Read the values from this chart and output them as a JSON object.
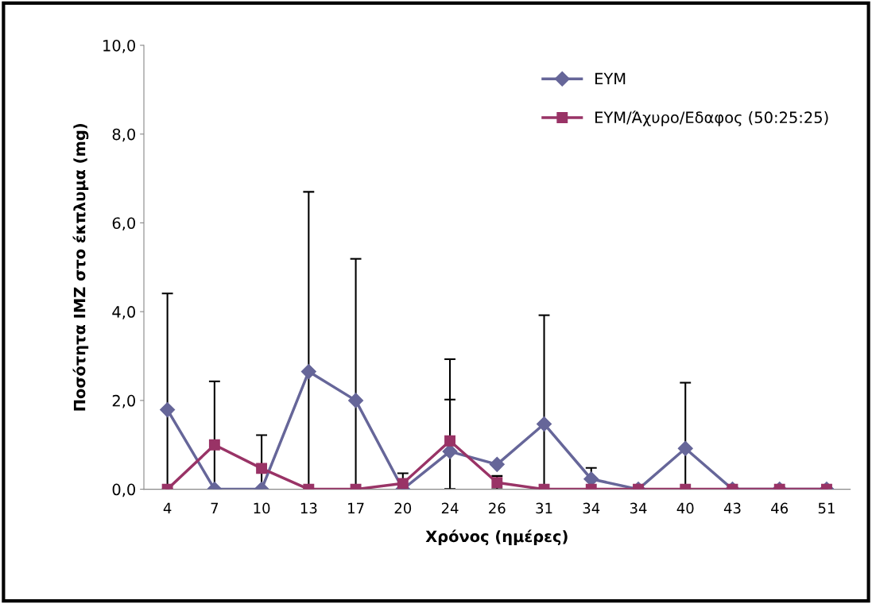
{
  "chart_data": {
    "type": "line",
    "xlabel": "Χρόνος (ημέρες)",
    "ylabel": "Ποσότητα IMZ στο έκπλυμα (mg)",
    "categories": [
      "4",
      "7",
      "10",
      "13",
      "17",
      "20",
      "24",
      "26",
      "31",
      "34",
      "34",
      "40",
      "43",
      "46",
      "51"
    ],
    "ylim": [
      0,
      10
    ],
    "yticks": [
      {
        "value": 0,
        "label": "0,0"
      },
      {
        "value": 2,
        "label": "2,0"
      },
      {
        "value": 4,
        "label": "4,0"
      },
      {
        "value": 6,
        "label": "6,0"
      },
      {
        "value": 8,
        "label": "8,0"
      },
      {
        "value": 10,
        "label": "10,0"
      }
    ],
    "grid": false,
    "legend": "top right",
    "line_style": "solid",
    "series": [
      {
        "name": "EYM",
        "color": "#666699",
        "marker": "diamond",
        "values": [
          1.79,
          0,
          0,
          2.65,
          2.0,
          0,
          0.85,
          0.56,
          1.47,
          0.23,
          0,
          0.92,
          0,
          0,
          0
        ],
        "errors": [
          [
            0,
            4.41
          ],
          null,
          null,
          [
            0,
            6.7
          ],
          [
            0,
            5.19
          ],
          [
            0,
            0.36
          ],
          [
            0,
            2.93
          ],
          null,
          [
            0,
            3.92
          ],
          [
            0,
            0.48
          ],
          null,
          [
            0,
            2.4
          ],
          null,
          null,
          null
        ]
      },
      {
        "name": "EYM/Άχυρο/Εδαφος (50:25:25)",
        "color": "#993366",
        "marker": "square",
        "values": [
          0,
          1.0,
          0.47,
          0,
          0,
          0.13,
          1.09,
          0.15,
          0,
          0,
          0,
          0,
          0,
          0,
          0
        ],
        "errors": [
          null,
          [
            0,
            2.43
          ],
          [
            0,
            1.22
          ],
          null,
          null,
          null,
          [
            0,
            2.02
          ],
          [
            0,
            0.3
          ],
          null,
          null,
          null,
          null,
          null,
          null,
          null
        ]
      }
    ]
  }
}
